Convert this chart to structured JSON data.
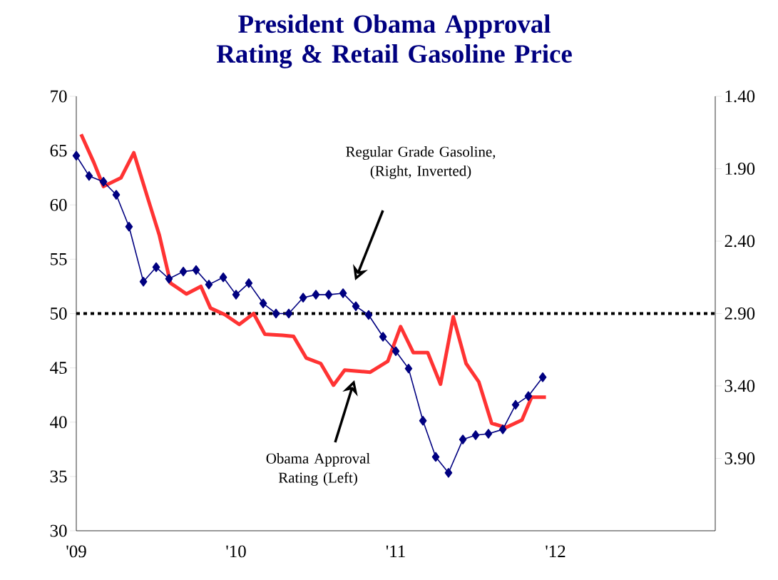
{
  "chart_data": {
    "type": "line",
    "title": "President Obama Approval Rating & Retail Gasoline Price",
    "xlim": [
      2009,
      2013
    ],
    "xticks": [
      {
        "value": 2009,
        "label": "'09"
      },
      {
        "value": 2010,
        "label": "'10"
      },
      {
        "value": 2011,
        "label": "'11"
      },
      {
        "value": 2012,
        "label": "'12"
      }
    ],
    "ylim": [
      30,
      70
    ],
    "yticks": [
      30,
      35,
      40,
      45,
      50,
      55,
      60,
      65,
      70
    ],
    "y2lim": [
      4.4,
      1.4
    ],
    "y2ticks": [
      {
        "value": 1.4,
        "label": "1.40"
      },
      {
        "value": 1.9,
        "label": "1.90"
      },
      {
        "value": 2.4,
        "label": "2.40"
      },
      {
        "value": 2.9,
        "label": "2.90"
      },
      {
        "value": 3.4,
        "label": "3.40"
      },
      {
        "value": 3.9,
        "label": "3.90"
      }
    ],
    "series": [
      {
        "color": "#ff3333",
        "marker": "none",
        "x": [
          2009.03,
          2009.11,
          2009.17,
          2009.28,
          2009.36,
          2009.45,
          2009.52,
          2009.59,
          2009.69,
          2009.78,
          2009.84,
          2009.93,
          2010.02,
          2010.11,
          2010.18,
          2010.29,
          2010.36,
          2010.44,
          2010.53,
          2010.61,
          2010.68,
          2010.84,
          2010.95,
          2011.03,
          2011.11,
          2011.2,
          2011.28,
          2011.36,
          2011.44,
          2011.52,
          2011.6,
          2011.69,
          2011.79,
          2011.85,
          2011.94
        ],
        "values": [
          66.5,
          63.9,
          61.7,
          62.5,
          64.8,
          60.5,
          57.2,
          52.8,
          51.8,
          52.5,
          50.5,
          49.9,
          49.0,
          50.0,
          48.1,
          48.0,
          47.9,
          45.9,
          45.4,
          43.4,
          44.8,
          44.6,
          45.6,
          48.8,
          46.4,
          46.4,
          43.5,
          49.7,
          45.4,
          43.7,
          39.9,
          39.5,
          40.2,
          42.3,
          42.3
        ]
      },
      {
        "color": "#000080",
        "marker": "diamond",
        "axis": "y2",
        "x": [
          2009.0,
          2009.08,
          2009.17,
          2009.25,
          2009.33,
          2009.42,
          2009.5,
          2009.58,
          2009.67,
          2009.75,
          2009.83,
          2009.92,
          2010.0,
          2010.08,
          2010.17,
          2010.25,
          2010.33,
          2010.42,
          2010.5,
          2010.58,
          2010.67,
          2010.75,
          2010.83,
          2010.92,
          2011.0,
          2011.08,
          2011.17,
          2011.25,
          2011.33,
          2011.42,
          2011.5,
          2011.58,
          2011.67,
          2011.75,
          2011.83,
          2011.92
        ],
        "values": [
          1.81,
          1.95,
          1.99,
          2.08,
          2.3,
          2.68,
          2.58,
          2.66,
          2.61,
          2.6,
          2.7,
          2.65,
          2.77,
          2.69,
          2.83,
          2.9,
          2.9,
          2.79,
          2.77,
          2.77,
          2.76,
          2.85,
          2.91,
          3.06,
          3.16,
          3.28,
          3.64,
          3.89,
          4.0,
          3.77,
          3.74,
          3.73,
          3.7,
          3.53,
          3.47,
          3.34
        ]
      }
    ],
    "ref_lines": [
      {
        "axis": "y",
        "value": 50,
        "color": "#000000",
        "line_style": "dotted"
      }
    ],
    "annotations": [
      "Regular Grade Gasoline, (Right, Inverted)",
      "Obama Approval Rating (Left)"
    ]
  }
}
